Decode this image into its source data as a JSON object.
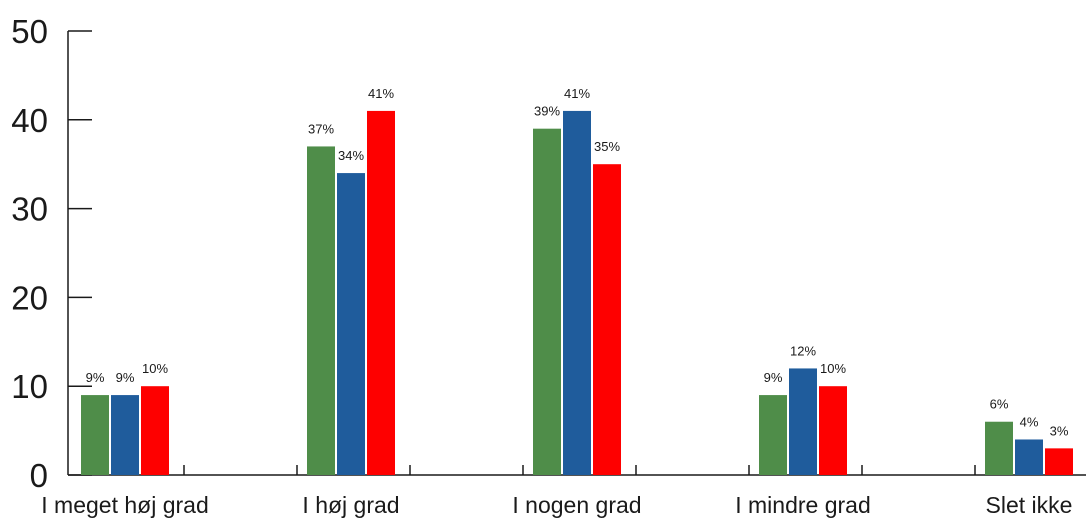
{
  "chart_data": {
    "type": "bar",
    "categories": [
      "I meget høj grad",
      "I høj grad",
      "I nogen grad",
      "I mindre grad",
      "Slet ikke"
    ],
    "series": [
      {
        "values": [
          9,
          37,
          39,
          9,
          6
        ],
        "labels": [
          "9%",
          "37%",
          "39%",
          "9%",
          "6%"
        ],
        "color": "#4f8d49"
      },
      {
        "values": [
          9,
          34,
          41,
          12,
          4
        ],
        "labels": [
          "9%",
          "34%",
          "41%",
          "12%",
          "4%"
        ],
        "color": "#1f5c9c"
      },
      {
        "values": [
          10,
          41,
          35,
          10,
          3
        ],
        "labels": [
          "10%",
          "41%",
          "35%",
          "10%",
          "3%"
        ],
        "color": "#fe0000"
      }
    ],
    "y_ticks": [
      "0",
      "10",
      "20",
      "30",
      "40",
      "50"
    ],
    "ylim": [
      0,
      50
    ],
    "grid": false,
    "legend": "none",
    "title": "",
    "xlabel": "",
    "ylabel": ""
  }
}
